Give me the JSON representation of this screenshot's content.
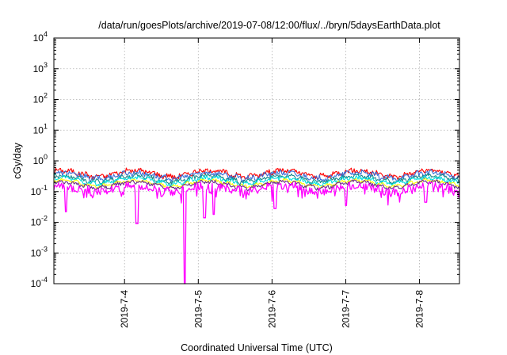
{
  "chart_data": {
    "type": "line",
    "title": "/data/run/goesPlots/archive/2019-07-08/12:00/flux/../bryn/5daysEarthData.plot",
    "xlabel": "Coordinated Universal Time (UTC)",
    "ylabel": "cGy/day",
    "yscale": "log",
    "ylim": [
      0.0001,
      10000
    ],
    "yticks": [
      {
        "value": 0.0001,
        "base": "10",
        "exp": "-4"
      },
      {
        "value": 0.001,
        "base": "10",
        "exp": "-3"
      },
      {
        "value": 0.01,
        "base": "10",
        "exp": "-2"
      },
      {
        "value": 0.1,
        "base": "10",
        "exp": "-1"
      },
      {
        "value": 1,
        "base": "10",
        "exp": "0"
      },
      {
        "value": 10,
        "base": "10",
        "exp": "1"
      },
      {
        "value": 100,
        "base": "10",
        "exp": "2"
      },
      {
        "value": 1000,
        "base": "10",
        "exp": "3"
      },
      {
        "value": 10000,
        "base": "10",
        "exp": "4"
      }
    ],
    "xlim": [
      "2019-07-03T01:00",
      "2019-07-08T13:00"
    ],
    "xticks": [
      "2019-7-4",
      "2019-7-5",
      "2019-7-6",
      "2019-7-7",
      "2019-7-8"
    ],
    "grid": true,
    "legend": "none",
    "series": [
      {
        "color": "#ff0000",
        "base": 0.4,
        "noise": 0.18
      },
      {
        "color": "#3a6fd8",
        "base": 0.34,
        "noise": 0.2
      },
      {
        "color": "#1a8a8a",
        "base": 0.27,
        "noise": 0.15
      },
      {
        "color": "#00e0e0",
        "base": 0.23,
        "noise": 0.14
      },
      {
        "color": "#ffff00",
        "base": 0.19,
        "noise": 0.1
      },
      {
        "color": "#6a2a8a",
        "base": 0.17,
        "noise": 0.12
      },
      {
        "color": "#ff00ff",
        "base": 0.13,
        "noise": 0.3
      }
    ],
    "dips": [
      {
        "t": "2019-07-03T05:00",
        "value": 0.022
      },
      {
        "t": "2019-07-04T04:00",
        "value": 0.009
      },
      {
        "t": "2019-07-04T19:30",
        "value": 0.0001
      },
      {
        "t": "2019-07-05T02:00",
        "value": 0.014
      },
      {
        "t": "2019-07-05T05:00",
        "value": 0.018
      },
      {
        "t": "2019-07-06T01:00",
        "value": 0.028
      },
      {
        "t": "2019-07-07T00:00",
        "value": 0.035
      },
      {
        "t": "2019-07-08T02:00",
        "value": 0.045
      }
    ]
  }
}
